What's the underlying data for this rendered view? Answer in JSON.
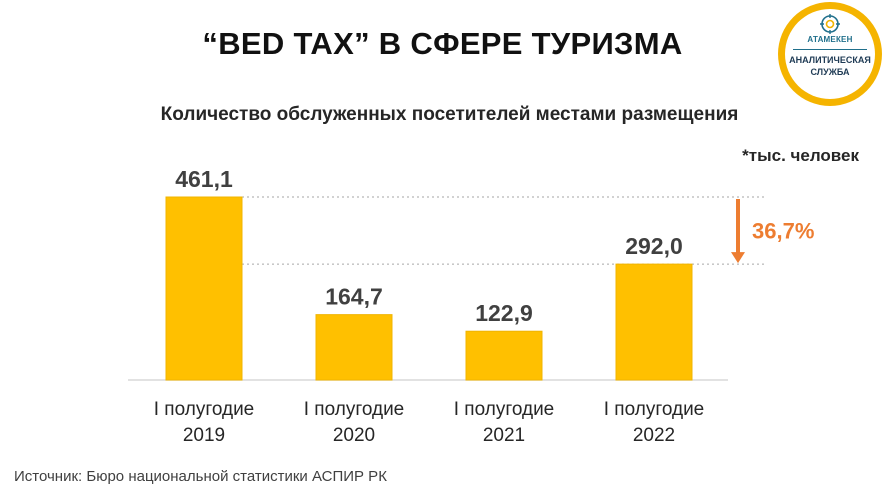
{
  "title": "“BED TAX” В СФЕРЕ ТУРИЗМА",
  "subtitle": "Количество обслуженных посетителей местами размещения",
  "unit_note": "*тыс. человек",
  "logo": {
    "brand": "АТАМЕКЕН",
    "line1": "АНАЛИТИЧЕСКАЯ",
    "line2": "СЛУЖБА"
  },
  "source": "Источник: Бюро национальной статистики АСПИР РК",
  "colors": {
    "bar": "#ffc000",
    "bar_edge": "#f0b400",
    "arrow": "#ed7d31",
    "axis": "#d9d9d9",
    "guide": "#a6a6a6"
  },
  "chart_data": {
    "type": "bar",
    "title": "Количество обслуженных посетителей местами размещения",
    "unit": "*тыс. человек",
    "categories": [
      [
        "I полугодие",
        "2019"
      ],
      [
        "I полугодие",
        "2020"
      ],
      [
        "I полугодие",
        "2021"
      ],
      [
        "I полугодие",
        "2022"
      ]
    ],
    "values": [
      461.1,
      164.7,
      122.9,
      292.0
    ],
    "value_labels": [
      "461,1",
      "164,7",
      "122,9",
      "292,0"
    ],
    "ylim": [
      0,
      461.1
    ],
    "grid": false,
    "annotation": {
      "text": "36,7%",
      "direction": "down",
      "from_category": 0,
      "to_category": 3
    }
  }
}
